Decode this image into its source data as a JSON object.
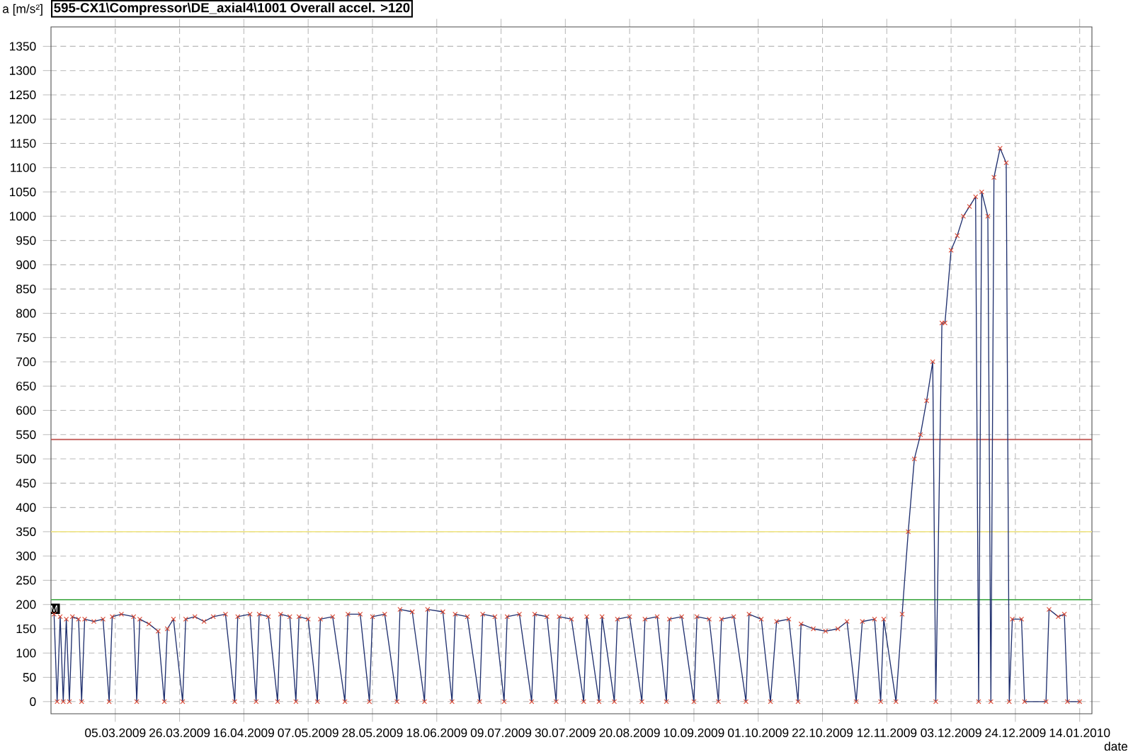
{
  "chart_data": {
    "type": "line",
    "title": "595-CX1\\Compressor\\DE_axial4\\1001 Overall accel. >120",
    "ylabel": "a [m/s²]",
    "xlabel": "date",
    "xlim": [
      "2009-02-12",
      "2010-01-18"
    ],
    "xticks": [
      {
        "value": "2009-03-05",
        "label": "05.03.2009"
      },
      {
        "value": "2009-03-26",
        "label": "26.03.2009"
      },
      {
        "value": "2009-04-16",
        "label": "16.04.2009"
      },
      {
        "value": "2009-05-07",
        "label": "07.05.2009"
      },
      {
        "value": "2009-05-28",
        "label": "28.05.2009"
      },
      {
        "value": "2009-06-18",
        "label": "18.06.2009"
      },
      {
        "value": "2009-07-09",
        "label": "09.07.2009"
      },
      {
        "value": "2009-07-30",
        "label": "30.07.2009"
      },
      {
        "value": "2009-08-20",
        "label": "20.08.2009"
      },
      {
        "value": "2009-09-10",
        "label": "10.09.2009"
      },
      {
        "value": "2009-10-01",
        "label": "01.10.2009"
      },
      {
        "value": "2009-10-22",
        "label": "22.10.2009"
      },
      {
        "value": "2009-11-12",
        "label": "12.11.2009"
      },
      {
        "value": "2009-12-03",
        "label": "03.12.2009"
      },
      {
        "value": "2009-12-24",
        "label": "24.12.2009"
      },
      {
        "value": "2010-01-14",
        "label": "14.01.2010"
      }
    ],
    "ylim": [
      -25,
      1390
    ],
    "yticks": [
      0,
      50,
      100,
      150,
      200,
      250,
      300,
      350,
      400,
      450,
      500,
      550,
      600,
      650,
      700,
      750,
      800,
      850,
      900,
      950,
      1000,
      1050,
      1100,
      1150,
      1200,
      1250,
      1300,
      1350
    ],
    "x": [
      "2009-02-13",
      "2009-02-14",
      "2009-02-15",
      "2009-02-16",
      "2009-02-17",
      "2009-02-18",
      "2009-02-19",
      "2009-02-21",
      "2009-02-22",
      "2009-02-23",
      "2009-02-26",
      "2009-03-01",
      "2009-03-03",
      "2009-03-04",
      "2009-03-07",
      "2009-03-11",
      "2009-03-12",
      "2009-03-13",
      "2009-03-16",
      "2009-03-19",
      "2009-03-21",
      "2009-03-22",
      "2009-03-24",
      "2009-03-27",
      "2009-03-28",
      "2009-03-31",
      "2009-04-03",
      "2009-04-06",
      "2009-04-10",
      "2009-04-13",
      "2009-04-14",
      "2009-04-18",
      "2009-04-20",
      "2009-04-21",
      "2009-04-24",
      "2009-04-27",
      "2009-04-28",
      "2009-05-01",
      "2009-05-03",
      "2009-05-04",
      "2009-05-07",
      "2009-05-10",
      "2009-05-11",
      "2009-05-15",
      "2009-05-19",
      "2009-05-20",
      "2009-05-24",
      "2009-05-27",
      "2009-05-28",
      "2009-06-01",
      "2009-06-05",
      "2009-06-06",
      "2009-06-10",
      "2009-06-14",
      "2009-06-15",
      "2009-06-20",
      "2009-06-23",
      "2009-06-24",
      "2009-06-28",
      "2009-07-02",
      "2009-07-03",
      "2009-07-07",
      "2009-07-10",
      "2009-07-11",
      "2009-07-15",
      "2009-07-19",
      "2009-07-20",
      "2009-07-24",
      "2009-07-27",
      "2009-07-28",
      "2009-08-01",
      "2009-08-05",
      "2009-08-06",
      "2009-08-10",
      "2009-08-11",
      "2009-08-15",
      "2009-08-16",
      "2009-08-20",
      "2009-08-24",
      "2009-08-25",
      "2009-08-29",
      "2009-09-01",
      "2009-09-02",
      "2009-09-06",
      "2009-09-10",
      "2009-09-11",
      "2009-09-15",
      "2009-09-18",
      "2009-09-19",
      "2009-09-23",
      "2009-09-27",
      "2009-09-28",
      "2009-10-02",
      "2009-10-05",
      "2009-10-07",
      "2009-10-11",
      "2009-10-14",
      "2009-10-15",
      "2009-10-19",
      "2009-10-23",
      "2009-10-27",
      "2009-10-30",
      "2009-11-02",
      "2009-11-04",
      "2009-11-08",
      "2009-11-10",
      "2009-11-11",
      "2009-11-15",
      "2009-11-17",
      "2009-11-19",
      "2009-11-21",
      "2009-11-23",
      "2009-11-25",
      "2009-11-27",
      "2009-11-28",
      "2009-11-30",
      "2009-12-01",
      "2009-12-03",
      "2009-12-05",
      "2009-12-07",
      "2009-12-09",
      "2009-12-11",
      "2009-12-12",
      "2009-12-13",
      "2009-12-15",
      "2009-12-16",
      "2009-12-17",
      "2009-12-19",
      "2009-12-21",
      "2009-12-22",
      "2009-12-23",
      "2009-12-26",
      "2009-12-27",
      "2010-01-03",
      "2010-01-04",
      "2010-01-07",
      "2010-01-09",
      "2010-01-10",
      "2010-01-14"
    ],
    "series": [
      {
        "color": "#1f2f6e",
        "values": [
          180,
          0,
          175,
          0,
          170,
          0,
          175,
          170,
          0,
          170,
          165,
          170,
          0,
          175,
          180,
          175,
          0,
          170,
          160,
          145,
          0,
          150,
          170,
          0,
          170,
          175,
          165,
          175,
          180,
          0,
          175,
          180,
          0,
          180,
          175,
          0,
          180,
          175,
          0,
          175,
          170,
          0,
          170,
          175,
          0,
          180,
          180,
          0,
          175,
          180,
          0,
          190,
          185,
          0,
          190,
          185,
          0,
          180,
          175,
          0,
          180,
          175,
          0,
          175,
          180,
          0,
          180,
          175,
          0,
          175,
          170,
          0,
          175,
          0,
          175,
          0,
          170,
          175,
          0,
          170,
          175,
          0,
          170,
          175,
          0,
          175,
          170,
          0,
          170,
          175,
          0,
          180,
          170,
          0,
          165,
          170,
          0,
          160,
          150,
          145,
          150,
          165,
          0,
          165,
          170,
          0,
          170,
          0,
          180,
          350,
          500,
          550,
          620,
          700,
          0,
          780,
          780,
          930,
          960,
          1000,
          1020,
          1040,
          0,
          1050,
          1000,
          0,
          1080,
          1140,
          1110,
          0,
          170,
          170,
          0,
          0,
          190,
          175,
          180,
          0,
          0
        ]
      },
      {
        "type": "scatter",
        "color": "#d9442e",
        "marker": "cross",
        "values": [
          180,
          0,
          175,
          0,
          170,
          0,
          175,
          170,
          0,
          170,
          165,
          170,
          0,
          175,
          180,
          175,
          0,
          170,
          160,
          145,
          0,
          150,
          170,
          0,
          170,
          175,
          165,
          175,
          180,
          0,
          175,
          180,
          0,
          180,
          175,
          0,
          180,
          175,
          0,
          175,
          170,
          0,
          170,
          175,
          0,
          180,
          180,
          0,
          175,
          180,
          0,
          190,
          185,
          0,
          190,
          185,
          0,
          180,
          175,
          0,
          180,
          175,
          0,
          175,
          180,
          0,
          180,
          175,
          0,
          175,
          170,
          0,
          175,
          0,
          175,
          0,
          170,
          175,
          0,
          170,
          175,
          0,
          170,
          175,
          0,
          175,
          170,
          0,
          170,
          175,
          0,
          180,
          170,
          0,
          165,
          170,
          0,
          160,
          150,
          145,
          150,
          165,
          0,
          165,
          170,
          0,
          170,
          0,
          180,
          350,
          500,
          550,
          620,
          700,
          0,
          780,
          780,
          930,
          960,
          1000,
          1020,
          1040,
          0,
          1050,
          1000,
          0,
          1080,
          1140,
          1110,
          0,
          170,
          170,
          0,
          0,
          190,
          175,
          180,
          0,
          0
        ]
      }
    ],
    "ref_lines": [
      {
        "axis": "y",
        "value": 540,
        "color": "#c0504d"
      },
      {
        "axis": "y",
        "value": 350,
        "color": "#f0e68c"
      },
      {
        "axis": "y",
        "value": 210,
        "color": "#4caf50"
      }
    ],
    "annotations": [
      {
        "text": "M",
        "x": "2009-02-13",
        "y": 180
      }
    ],
    "grid": true
  }
}
